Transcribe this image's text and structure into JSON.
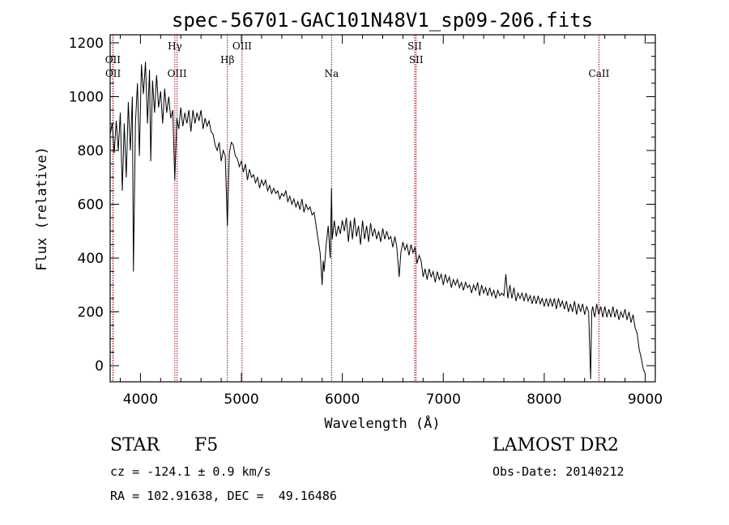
{
  "chart_data": {
    "type": "line",
    "title": "spec-56701-GAC101N48V1_sp09-206.fits",
    "xlabel": "Wavelength (Å)",
    "ylabel": "Flux (relative)",
    "xlim": [
      3700,
      9100
    ],
    "ylim": [
      -60,
      1230
    ],
    "x_ticks": [
      4000,
      5000,
      6000,
      7000,
      8000,
      9000
    ],
    "y_ticks": [
      0,
      200,
      400,
      600,
      800,
      1000,
      1200
    ],
    "grid": false,
    "spectrum": [
      [
        3700,
        860
      ],
      [
        3720,
        900
      ],
      [
        3740,
        790
      ],
      [
        3760,
        910
      ],
      [
        3780,
        800
      ],
      [
        3800,
        940
      ],
      [
        3820,
        650
      ],
      [
        3840,
        900
      ],
      [
        3860,
        700
      ],
      [
        3880,
        980
      ],
      [
        3900,
        800
      ],
      [
        3920,
        1000
      ],
      [
        3930,
        350
      ],
      [
        3950,
        900
      ],
      [
        3970,
        1050
      ],
      [
        3990,
        780
      ],
      [
        4010,
        1120
      ],
      [
        4030,
        1010
      ],
      [
        4050,
        1130
      ],
      [
        4070,
        900
      ],
      [
        4090,
        1100
      ],
      [
        4102,
        760
      ],
      [
        4120,
        1060
      ],
      [
        4140,
        940
      ],
      [
        4160,
        1080
      ],
      [
        4180,
        960
      ],
      [
        4200,
        1020
      ],
      [
        4220,
        900
      ],
      [
        4240,
        1030
      ],
      [
        4260,
        940
      ],
      [
        4280,
        1000
      ],
      [
        4300,
        920
      ],
      [
        4320,
        950
      ],
      [
        4340,
        690
      ],
      [
        4360,
        920
      ],
      [
        4380,
        880
      ],
      [
        4400,
        960
      ],
      [
        4420,
        890
      ],
      [
        4440,
        940
      ],
      [
        4460,
        900
      ],
      [
        4480,
        950
      ],
      [
        4500,
        870
      ],
      [
        4520,
        950
      ],
      [
        4540,
        900
      ],
      [
        4560,
        940
      ],
      [
        4580,
        910
      ],
      [
        4600,
        950
      ],
      [
        4620,
        880
      ],
      [
        4640,
        920
      ],
      [
        4660,
        890
      ],
      [
        4680,
        910
      ],
      [
        4700,
        870
      ],
      [
        4720,
        860
      ],
      [
        4740,
        820
      ],
      [
        4760,
        800
      ],
      [
        4780,
        830
      ],
      [
        4800,
        760
      ],
      [
        4820,
        800
      ],
      [
        4840,
        780
      ],
      [
        4861,
        520
      ],
      [
        4880,
        790
      ],
      [
        4900,
        830
      ],
      [
        4920,
        820
      ],
      [
        4940,
        780
      ],
      [
        4960,
        770
      ],
      [
        4980,
        740
      ],
      [
        5000,
        760
      ],
      [
        5020,
        720
      ],
      [
        5040,
        750
      ],
      [
        5060,
        690
      ],
      [
        5080,
        730
      ],
      [
        5100,
        700
      ],
      [
        5120,
        710
      ],
      [
        5140,
        680
      ],
      [
        5160,
        700
      ],
      [
        5180,
        660
      ],
      [
        5200,
        690
      ],
      [
        5220,
        670
      ],
      [
        5240,
        690
      ],
      [
        5260,
        650
      ],
      [
        5280,
        670
      ],
      [
        5300,
        640
      ],
      [
        5320,
        660
      ],
      [
        5340,
        640
      ],
      [
        5360,
        650
      ],
      [
        5380,
        620
      ],
      [
        5400,
        640
      ],
      [
        5420,
        630
      ],
      [
        5440,
        650
      ],
      [
        5460,
        610
      ],
      [
        5480,
        630
      ],
      [
        5500,
        600
      ],
      [
        5520,
        620
      ],
      [
        5540,
        590
      ],
      [
        5560,
        610
      ],
      [
        5580,
        580
      ],
      [
        5600,
        620
      ],
      [
        5620,
        570
      ],
      [
        5640,
        600
      ],
      [
        5660,
        580
      ],
      [
        5680,
        590
      ],
      [
        5700,
        560
      ],
      [
        5720,
        570
      ],
      [
        5740,
        520
      ],
      [
        5760,
        470
      ],
      [
        5780,
        420
      ],
      [
        5795,
        330
      ],
      [
        5800,
        300
      ],
      [
        5810,
        390
      ],
      [
        5820,
        350
      ],
      [
        5840,
        450
      ],
      [
        5860,
        520
      ],
      [
        5880,
        400
      ],
      [
        5893,
        660
      ],
      [
        5900,
        470
      ],
      [
        5920,
        540
      ],
      [
        5940,
        480
      ],
      [
        5960,
        520
      ],
      [
        5980,
        490
      ],
      [
        6000,
        540
      ],
      [
        6020,
        500
      ],
      [
        6040,
        550
      ],
      [
        6060,
        460
      ],
      [
        6080,
        540
      ],
      [
        6100,
        470
      ],
      [
        6120,
        550
      ],
      [
        6140,
        480
      ],
      [
        6160,
        520
      ],
      [
        6180,
        450
      ],
      [
        6200,
        540
      ],
      [
        6220,
        470
      ],
      [
        6240,
        520
      ],
      [
        6260,
        460
      ],
      [
        6280,
        530
      ],
      [
        6300,
        480
      ],
      [
        6320,
        510
      ],
      [
        6340,
        470
      ],
      [
        6360,
        500
      ],
      [
        6380,
        460
      ],
      [
        6400,
        510
      ],
      [
        6420,
        470
      ],
      [
        6440,
        500
      ],
      [
        6460,
        470
      ],
      [
        6480,
        480
      ],
      [
        6500,
        440
      ],
      [
        6520,
        480
      ],
      [
        6540,
        440
      ],
      [
        6563,
        330
      ],
      [
        6580,
        420
      ],
      [
        6600,
        460
      ],
      [
        6620,
        430
      ],
      [
        6640,
        450
      ],
      [
        6660,
        410
      ],
      [
        6680,
        450
      ],
      [
        6700,
        420
      ],
      [
        6720,
        440
      ],
      [
        6740,
        380
      ],
      [
        6760,
        410
      ],
      [
        6780,
        390
      ],
      [
        6800,
        330
      ],
      [
        6820,
        360
      ],
      [
        6840,
        320
      ],
      [
        6860,
        360
      ],
      [
        6880,
        330
      ],
      [
        6900,
        350
      ],
      [
        6920,
        310
      ],
      [
        6940,
        350
      ],
      [
        6960,
        320
      ],
      [
        6980,
        340
      ],
      [
        7000,
        300
      ],
      [
        7020,
        340
      ],
      [
        7040,
        310
      ],
      [
        7060,
        330
      ],
      [
        7080,
        290
      ],
      [
        7100,
        320
      ],
      [
        7120,
        300
      ],
      [
        7140,
        320
      ],
      [
        7160,
        290
      ],
      [
        7180,
        310
      ],
      [
        7200,
        280
      ],
      [
        7220,
        310
      ],
      [
        7240,
        290
      ],
      [
        7260,
        300
      ],
      [
        7280,
        270
      ],
      [
        7300,
        300
      ],
      [
        7320,
        280
      ],
      [
        7340,
        310
      ],
      [
        7360,
        260
      ],
      [
        7380,
        300
      ],
      [
        7400,
        270
      ],
      [
        7420,
        290
      ],
      [
        7440,
        260
      ],
      [
        7460,
        290
      ],
      [
        7480,
        260
      ],
      [
        7500,
        280
      ],
      [
        7520,
        250
      ],
      [
        7540,
        280
      ],
      [
        7560,
        260
      ],
      [
        7580,
        270
      ],
      [
        7600,
        260
      ],
      [
        7620,
        340
      ],
      [
        7640,
        250
      ],
      [
        7660,
        300
      ],
      [
        7680,
        250
      ],
      [
        7700,
        290
      ],
      [
        7720,
        240
      ],
      [
        7740,
        270
      ],
      [
        7760,
        250
      ],
      [
        7780,
        270
      ],
      [
        7800,
        240
      ],
      [
        7820,
        270
      ],
      [
        7840,
        240
      ],
      [
        7860,
        260
      ],
      [
        7880,
        230
      ],
      [
        7900,
        260
      ],
      [
        7920,
        230
      ],
      [
        7940,
        260
      ],
      [
        7960,
        230
      ],
      [
        7980,
        250
      ],
      [
        8000,
        220
      ],
      [
        8020,
        250
      ],
      [
        8040,
        220
      ],
      [
        8060,
        250
      ],
      [
        8080,
        220
      ],
      [
        8100,
        250
      ],
      [
        8120,
        210
      ],
      [
        8140,
        250
      ],
      [
        8160,
        220
      ],
      [
        8180,
        240
      ],
      [
        8200,
        210
      ],
      [
        8220,
        240
      ],
      [
        8240,
        200
      ],
      [
        8260,
        230
      ],
      [
        8280,
        200
      ],
      [
        8300,
        240
      ],
      [
        8320,
        190
      ],
      [
        8340,
        230
      ],
      [
        8360,
        200
      ],
      [
        8380,
        230
      ],
      [
        8400,
        190
      ],
      [
        8420,
        220
      ],
      [
        8440,
        200
      ],
      [
        8460,
        -50
      ],
      [
        8470,
        200
      ],
      [
        8480,
        220
      ],
      [
        8500,
        180
      ],
      [
        8520,
        230
      ],
      [
        8540,
        190
      ],
      [
        8560,
        220
      ],
      [
        8580,
        180
      ],
      [
        8600,
        220
      ],
      [
        8620,
        180
      ],
      [
        8640,
        210
      ],
      [
        8660,
        180
      ],
      [
        8680,
        220
      ],
      [
        8700,
        180
      ],
      [
        8720,
        210
      ],
      [
        8740,
        170
      ],
      [
        8760,
        200
      ],
      [
        8780,
        180
      ],
      [
        8800,
        210
      ],
      [
        8820,
        170
      ],
      [
        8840,
        200
      ],
      [
        8860,
        160
      ],
      [
        8880,
        190
      ],
      [
        8900,
        140
      ],
      [
        8920,
        120
      ],
      [
        8940,
        60
      ],
      [
        8960,
        30
      ],
      [
        8980,
        -10
      ],
      [
        9000,
        -30
      ]
    ],
    "line_markers": [
      {
        "name": "OII",
        "wavelength": 3727,
        "row": 1
      },
      {
        "name": "OII",
        "wavelength": 3729,
        "row": 2
      },
      {
        "name": "Hγ",
        "wavelength": 4341,
        "row": 0
      },
      {
        "name": "OIII",
        "wavelength": 4363,
        "row": 2
      },
      {
        "name": "Hβ",
        "wavelength": 4861,
        "row": 1
      },
      {
        "name": "OIII",
        "wavelength": 5007,
        "row": 0
      },
      {
        "name": "Na",
        "wavelength": 5893,
        "row": 2
      },
      {
        "name": "SII",
        "wavelength": 6717,
        "row": 0
      },
      {
        "name": "SII",
        "wavelength": 6731,
        "row": 1
      },
      {
        "name": "CaII",
        "wavelength": 8542,
        "row": 2
      }
    ],
    "line_color": "#000000",
    "marker_color": "#a00000"
  },
  "info": {
    "class_label": "STAR",
    "subclass_label": "F5",
    "cz_line": "cz = -124.1 ± 0.9 km/s",
    "coords_line": "RA = 102.91638, DEC =  49.16486",
    "survey_label": "LAMOST DR2",
    "obs_date_line": "Obs-Date: 20140212"
  }
}
